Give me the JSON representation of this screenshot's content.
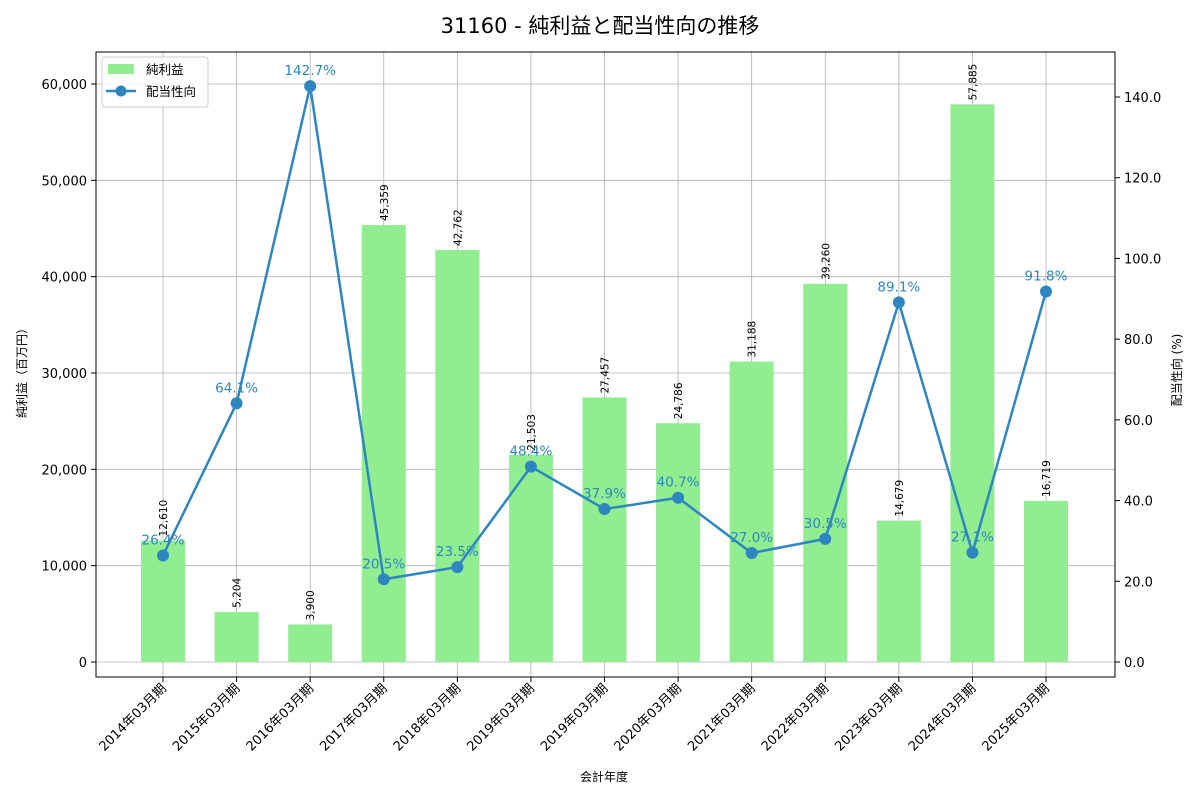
{
  "chart_data": {
    "type": "bar+line",
    "title": "31160 - 純利益と配当性向の推移",
    "xlabel": "会計年度",
    "ylabel_left": "純利益（百万円）",
    "ylabel_right": "配当性向 (%)",
    "categories": [
      "2014年03月期",
      "2015年03月期",
      "2016年03月期",
      "2017年03月期",
      "2018年03月期",
      "2019年03月期",
      "2019年03月期",
      "2020年03月期",
      "2021年03月期",
      "2022年03月期",
      "2023年03月期",
      "2024年03月期",
      "2025年03月期"
    ],
    "series": [
      {
        "name": "純利益",
        "type": "bar",
        "axis": "left",
        "color": "#90ee90",
        "values": [
          12610,
          5204,
          3900,
          45359,
          42762,
          21503,
          27457,
          24786,
          31188,
          39260,
          14679,
          57885,
          16719
        ],
        "labels": [
          "12,610",
          "5,204",
          "3,900",
          "45,359",
          "42,762",
          "21,503",
          "27,457",
          "24,786",
          "31,188",
          "39,260",
          "14,679",
          "57,885",
          "16,719"
        ]
      },
      {
        "name": "配当性向",
        "type": "line",
        "axis": "right",
        "color": "#2e86c1",
        "values": [
          26.4,
          64.1,
          142.7,
          20.5,
          23.5,
          48.4,
          37.9,
          40.7,
          27.0,
          30.5,
          89.1,
          27.1,
          91.8
        ],
        "labels": [
          "26.4%",
          "64.1%",
          "142.7%",
          "20.5%",
          "23.5%",
          "48.4%",
          "37.9%",
          "40.7%",
          "27.0%",
          "30.5%",
          "89.1%",
          "27.1%",
          "91.8%"
        ]
      }
    ],
    "ylim_left": [
      -1500,
      63500
    ],
    "ylim_right": [
      -3.5,
      151
    ],
    "yticks_left": [
      "0",
      "10,000",
      "20,000",
      "30,000",
      "40,000",
      "50,000",
      "60,000"
    ],
    "yticks_left_values": [
      0,
      10000,
      20000,
      30000,
      40000,
      50000,
      60000
    ],
    "yticks_right": [
      "0.0",
      "20.0",
      "40.0",
      "60.0",
      "80.0",
      "100.0",
      "120.0",
      "140.0"
    ],
    "yticks_right_values": [
      0,
      20,
      40,
      60,
      80,
      100,
      120,
      140
    ],
    "grid": true,
    "legend_position": "upper left",
    "legend": [
      "純利益",
      "配当性向"
    ]
  }
}
